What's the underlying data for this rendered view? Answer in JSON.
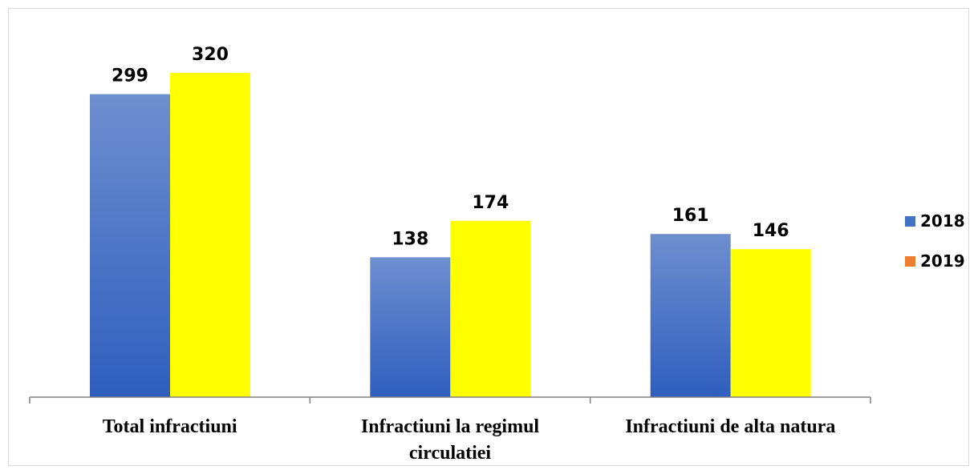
{
  "chart_data": {
    "type": "bar",
    "title": "",
    "xlabel": "",
    "ylabel": "",
    "categories": [
      [
        "Total infractiuni"
      ],
      [
        "Infractiuni la regimul",
        "circulatiei"
      ],
      [
        "Infractiuni de alta natura"
      ]
    ],
    "series": [
      {
        "name": "2018",
        "values": [
          299,
          138,
          161
        ],
        "color": "#4472C4",
        "legend_color": "#4472C4"
      },
      {
        "name": "2019",
        "values": [
          320,
          174,
          146
        ],
        "color": "#FFFF00",
        "legend_color": "#ED7D31"
      }
    ],
    "ylim": [
      0,
      320
    ],
    "grid": false,
    "legend": "right"
  }
}
